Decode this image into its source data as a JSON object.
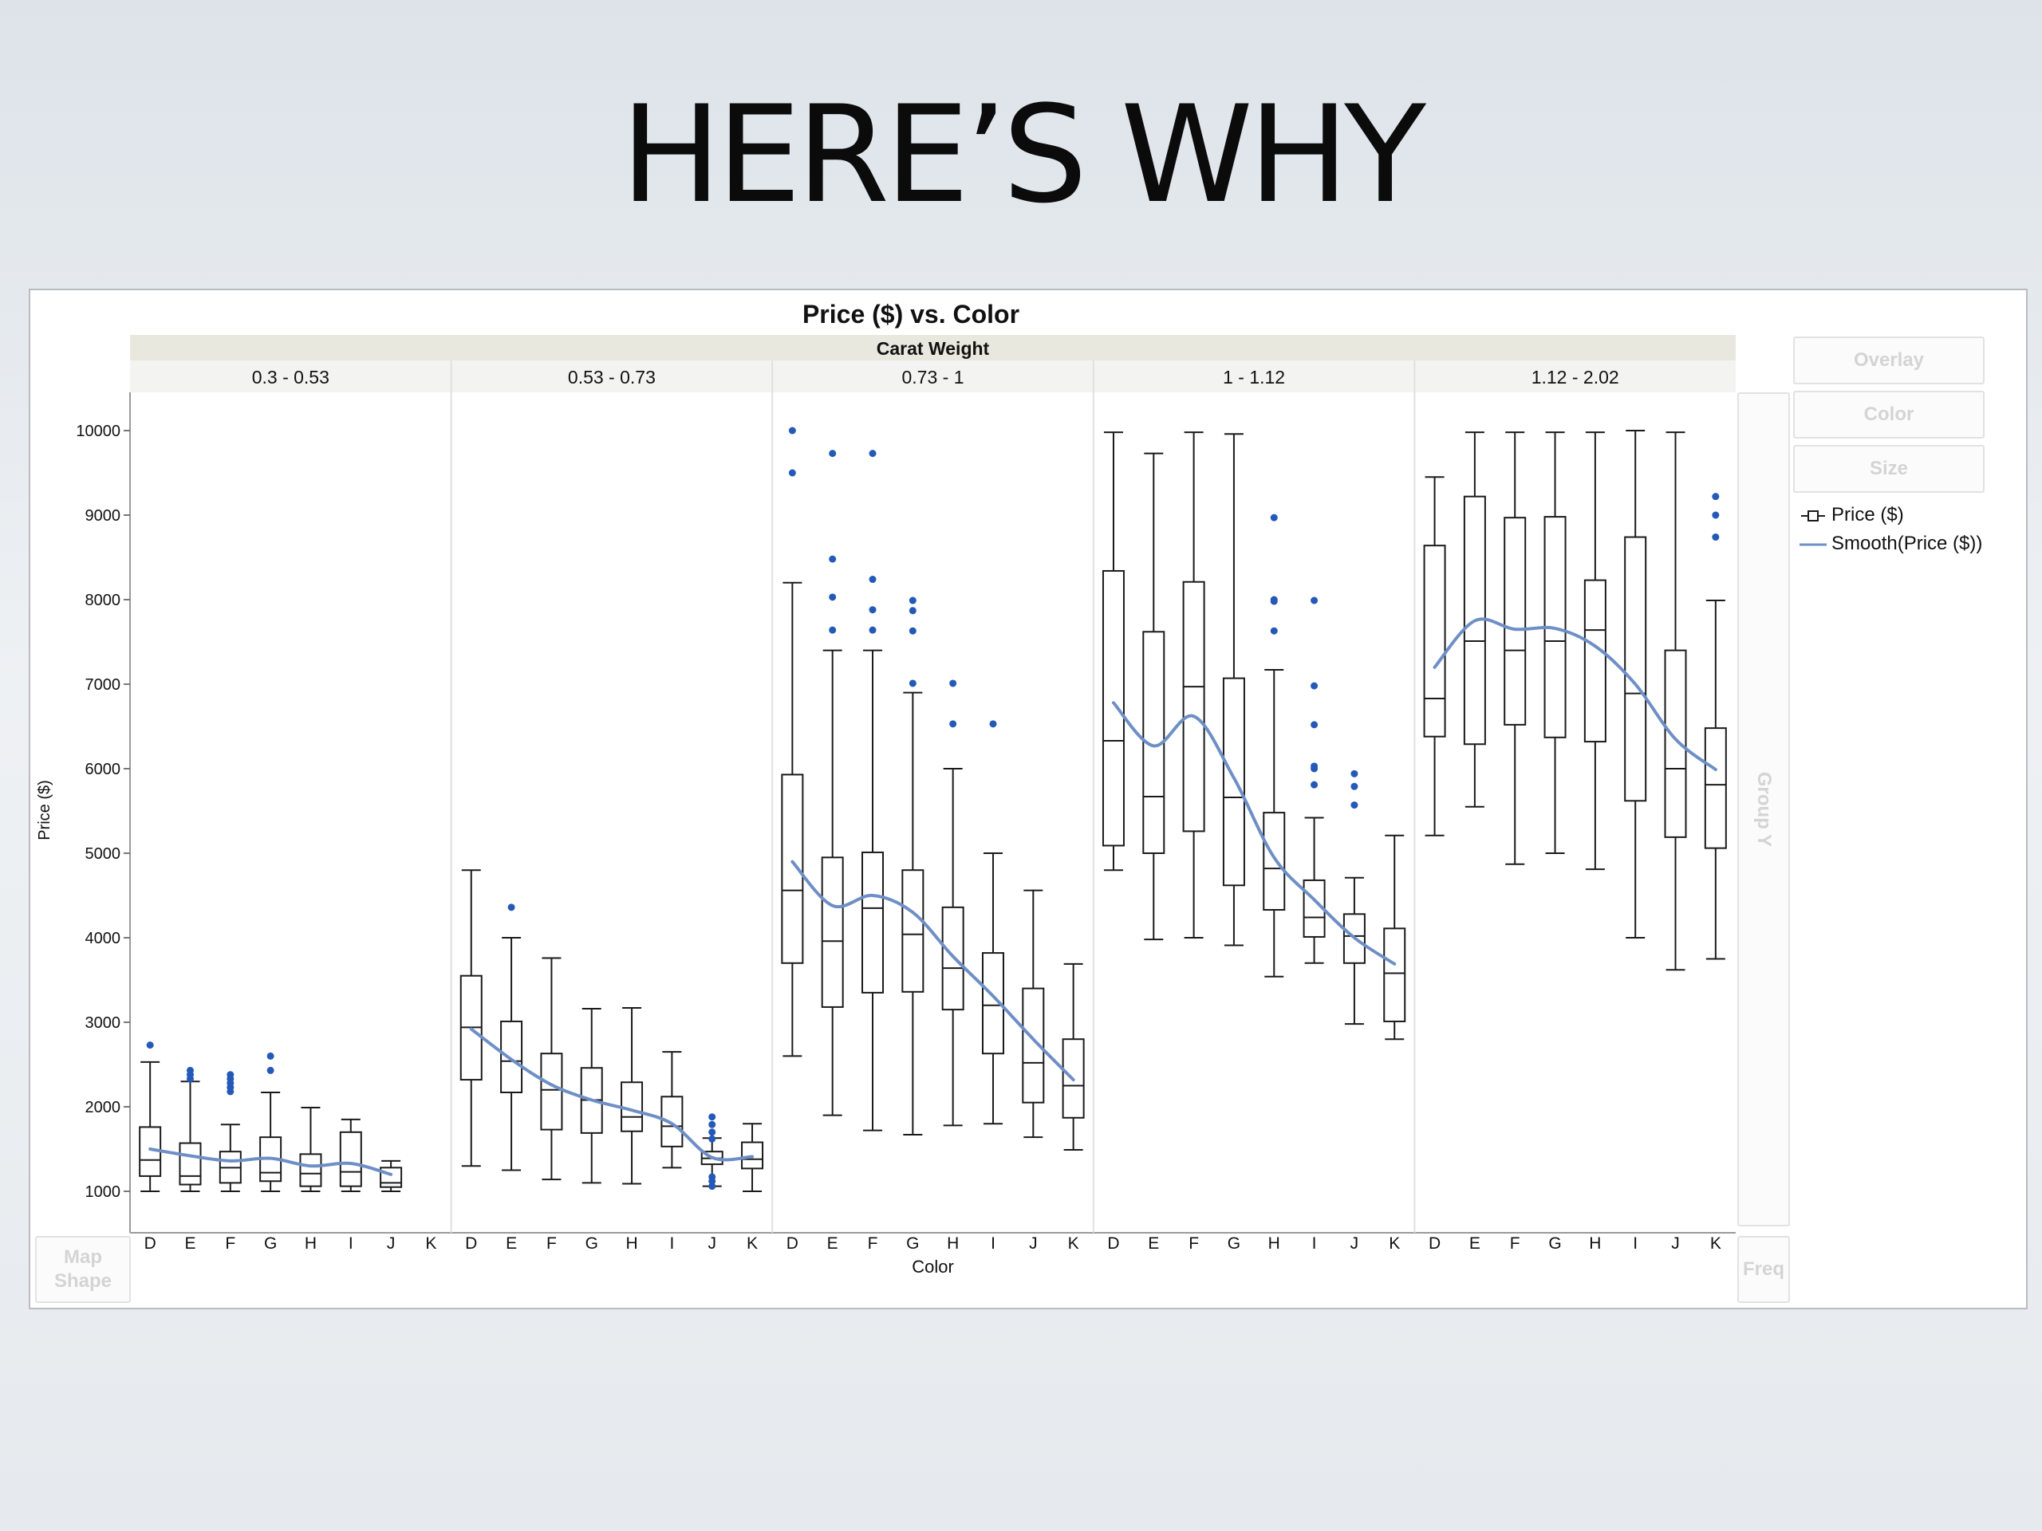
{
  "slide": {
    "title": "HERE’S WHY"
  },
  "legend": {
    "items": [
      {
        "label": "Price ($)",
        "icon": "box-plot-icon"
      },
      {
        "label": "Smooth(Price ($))",
        "icon": "smooth-line-icon"
      }
    ]
  },
  "drop_zones": {
    "overlay": "Overlay",
    "color": "Color",
    "size": "Size",
    "group_y": "Group Y",
    "map_shape_1": "Map",
    "map_shape_2": "Shape",
    "freq": "Freq"
  },
  "colors": {
    "box": "#1a1a1a",
    "outlier": "#2459b8",
    "smooth": "#6e8fc6",
    "header_band": "#e8e8df"
  },
  "chart_data": {
    "type": "box",
    "title": "Price ($) vs. Color",
    "group_label": "Carat Weight",
    "xlabel": "Color",
    "ylabel": "Price ($)",
    "ylim": [
      1000,
      10000
    ],
    "yticks": [
      1000,
      2000,
      3000,
      4000,
      5000,
      6000,
      7000,
      8000,
      9000,
      10000
    ],
    "categories": [
      "D",
      "E",
      "F",
      "G",
      "H",
      "I",
      "J",
      "K"
    ],
    "legend_position": "right",
    "panels": [
      {
        "label": "0.3 - 0.53",
        "boxes": [
          {
            "cat": "D",
            "min": 1000,
            "q1": 1180,
            "median": 1370,
            "q3": 1760,
            "max": 2530,
            "outliers": [
              2730
            ]
          },
          {
            "cat": "E",
            "min": 1000,
            "q1": 1080,
            "median": 1180,
            "q3": 1570,
            "max": 2300,
            "outliers": [
              2330,
              2380,
              2430
            ]
          },
          {
            "cat": "F",
            "min": 1000,
            "q1": 1100,
            "median": 1280,
            "q3": 1470,
            "max": 1790,
            "outliers": [
              2180,
              2230,
              2280,
              2330,
              2380
            ]
          },
          {
            "cat": "G",
            "min": 1000,
            "q1": 1120,
            "median": 1220,
            "q3": 1640,
            "max": 2170,
            "outliers": [
              2430,
              2600
            ]
          },
          {
            "cat": "H",
            "min": 1000,
            "q1": 1060,
            "median": 1210,
            "q3": 1440,
            "max": 1990,
            "outliers": []
          },
          {
            "cat": "I",
            "min": 1000,
            "q1": 1060,
            "median": 1230,
            "q3": 1700,
            "max": 1850,
            "outliers": []
          },
          {
            "cat": "J",
            "min": 1000,
            "q1": 1050,
            "median": 1100,
            "q3": 1280,
            "max": 1360,
            "outliers": []
          }
        ],
        "smooth": [
          [
            "D",
            1500
          ],
          [
            "E",
            1420
          ],
          [
            "F",
            1360
          ],
          [
            "G",
            1390
          ],
          [
            "H",
            1300
          ],
          [
            "I",
            1330
          ],
          [
            "J",
            1200
          ]
        ]
      },
      {
        "label": "0.53 - 0.73",
        "boxes": [
          {
            "cat": "D",
            "min": 1300,
            "q1": 2320,
            "median": 2940,
            "q3": 3550,
            "max": 4800,
            "outliers": []
          },
          {
            "cat": "E",
            "min": 1250,
            "q1": 2170,
            "median": 2540,
            "q3": 3010,
            "max": 4000,
            "outliers": [
              4360
            ]
          },
          {
            "cat": "F",
            "min": 1140,
            "q1": 1730,
            "median": 2200,
            "q3": 2630,
            "max": 3760,
            "outliers": []
          },
          {
            "cat": "G",
            "min": 1100,
            "q1": 1690,
            "median": 2080,
            "q3": 2460,
            "max": 3160,
            "outliers": []
          },
          {
            "cat": "H",
            "min": 1090,
            "q1": 1710,
            "median": 1880,
            "q3": 2290,
            "max": 3170,
            "outliers": []
          },
          {
            "cat": "I",
            "min": 1280,
            "q1": 1530,
            "median": 1770,
            "q3": 2120,
            "max": 2650,
            "outliers": []
          },
          {
            "cat": "J",
            "min": 1060,
            "q1": 1320,
            "median": 1390,
            "q3": 1470,
            "max": 1630,
            "outliers": [
              1060,
              1120,
              1170,
              1620,
              1700,
              1790,
              1880
            ]
          },
          {
            "cat": "K",
            "min": 1000,
            "q1": 1270,
            "median": 1380,
            "q3": 1580,
            "max": 1800,
            "outliers": []
          }
        ],
        "smooth": [
          [
            "D",
            2920
          ],
          [
            "E",
            2560
          ],
          [
            "F",
            2260
          ],
          [
            "G",
            2080
          ],
          [
            "H",
            1960
          ],
          [
            "I",
            1800
          ],
          [
            "J",
            1400
          ],
          [
            "K",
            1410
          ]
        ]
      },
      {
        "label": "0.73 - 1",
        "boxes": [
          {
            "cat": "D",
            "min": 2600,
            "q1": 3700,
            "median": 4560,
            "q3": 5930,
            "max": 8200,
            "outliers": [
              9500,
              10000
            ]
          },
          {
            "cat": "E",
            "min": 1900,
            "q1": 3180,
            "median": 3960,
            "q3": 4950,
            "max": 7400,
            "outliers": [
              7640,
              8030,
              8480,
              9730
            ]
          },
          {
            "cat": "F",
            "min": 1720,
            "q1": 3350,
            "median": 4350,
            "q3": 5010,
            "max": 7400,
            "outliers": [
              7640,
              7880,
              8240,
              9730
            ]
          },
          {
            "cat": "G",
            "min": 1670,
            "q1": 3360,
            "median": 4040,
            "q3": 4800,
            "max": 6900,
            "outliers": [
              7010,
              7630,
              7870,
              7990
            ]
          },
          {
            "cat": "H",
            "min": 1780,
            "q1": 3150,
            "median": 3640,
            "q3": 4360,
            "max": 6000,
            "outliers": [
              6530,
              7010
            ]
          },
          {
            "cat": "I",
            "min": 1800,
            "q1": 2630,
            "median": 3200,
            "q3": 3820,
            "max": 5000,
            "outliers": [
              6530
            ]
          },
          {
            "cat": "J",
            "min": 1640,
            "q1": 2050,
            "median": 2520,
            "q3": 3400,
            "max": 4560,
            "outliers": []
          },
          {
            "cat": "K",
            "min": 1490,
            "q1": 1870,
            "median": 2250,
            "q3": 2800,
            "max": 3690,
            "outliers": []
          }
        ],
        "smooth": [
          [
            "D",
            4900
          ],
          [
            "E",
            4380
          ],
          [
            "F",
            4500
          ],
          [
            "G",
            4300
          ],
          [
            "H",
            3780
          ],
          [
            "I",
            3310
          ],
          [
            "J",
            2800
          ],
          [
            "K",
            2320
          ]
        ]
      },
      {
        "label": "1 - 1.12",
        "boxes": [
          {
            "cat": "D",
            "min": 4800,
            "q1": 5090,
            "median": 6330,
            "q3": 8340,
            "max": 9980,
            "outliers": []
          },
          {
            "cat": "E",
            "min": 3980,
            "q1": 5000,
            "median": 5670,
            "q3": 7620,
            "max": 9730,
            "outliers": []
          },
          {
            "cat": "F",
            "min": 4000,
            "q1": 5260,
            "median": 6970,
            "q3": 8210,
            "max": 9980,
            "outliers": []
          },
          {
            "cat": "G",
            "min": 3910,
            "q1": 4620,
            "median": 5660,
            "q3": 7070,
            "max": 9960,
            "outliers": []
          },
          {
            "cat": "H",
            "min": 3540,
            "q1": 4330,
            "median": 4820,
            "q3": 5480,
            "max": 7170,
            "outliers": [
              7630,
              7980,
              8000,
              8970
            ]
          },
          {
            "cat": "I",
            "min": 3700,
            "q1": 4010,
            "median": 4240,
            "q3": 4680,
            "max": 5420,
            "outliers": [
              5810,
              6000,
              6030,
              6520,
              6980,
              7990
            ]
          },
          {
            "cat": "J",
            "min": 2980,
            "q1": 3700,
            "median": 4020,
            "q3": 4280,
            "max": 4710,
            "outliers": [
              5570,
              5790,
              5940
            ]
          },
          {
            "cat": "K",
            "min": 2800,
            "q1": 3010,
            "median": 3580,
            "q3": 4110,
            "max": 5210,
            "outliers": []
          }
        ],
        "smooth": [
          [
            "D",
            6780
          ],
          [
            "E",
            6270
          ],
          [
            "F",
            6620
          ],
          [
            "G",
            5890
          ],
          [
            "H",
            4950
          ],
          [
            "I",
            4450
          ],
          [
            "J",
            4000
          ],
          [
            "K",
            3690
          ]
        ]
      },
      {
        "label": "1.12 - 2.02",
        "boxes": [
          {
            "cat": "D",
            "min": 5210,
            "q1": 6380,
            "median": 6830,
            "q3": 8640,
            "max": 9450,
            "outliers": []
          },
          {
            "cat": "E",
            "min": 5550,
            "q1": 6290,
            "median": 7510,
            "q3": 9220,
            "max": 9980,
            "outliers": []
          },
          {
            "cat": "F",
            "min": 4870,
            "q1": 6520,
            "median": 7400,
            "q3": 8970,
            "max": 9980,
            "outliers": []
          },
          {
            "cat": "G",
            "min": 5000,
            "q1": 6370,
            "median": 7510,
            "q3": 8980,
            "max": 9980,
            "outliers": []
          },
          {
            "cat": "H",
            "min": 4810,
            "q1": 6320,
            "median": 7640,
            "q3": 8230,
            "max": 9980,
            "outliers": []
          },
          {
            "cat": "I",
            "min": 4000,
            "q1": 5620,
            "median": 6890,
            "q3": 8740,
            "max": 10000,
            "outliers": []
          },
          {
            "cat": "J",
            "min": 3620,
            "q1": 5190,
            "median": 6000,
            "q3": 7400,
            "max": 9980,
            "outliers": []
          },
          {
            "cat": "K",
            "min": 3750,
            "q1": 5060,
            "median": 5810,
            "q3": 6480,
            "max": 7990,
            "outliers": [
              8740,
              9000,
              9220
            ]
          }
        ],
        "smooth": [
          [
            "D",
            7200
          ],
          [
            "E",
            7750
          ],
          [
            "F",
            7650
          ],
          [
            "G",
            7660
          ],
          [
            "H",
            7450
          ],
          [
            "I",
            7000
          ],
          [
            "J",
            6350
          ],
          [
            "K",
            5990
          ]
        ]
      }
    ]
  }
}
